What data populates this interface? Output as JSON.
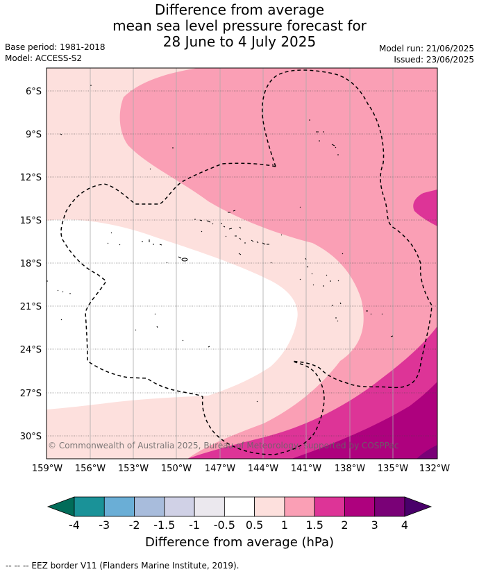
{
  "title": {
    "line1": "Difference from average",
    "line2": "mean sea level pressure forecast for",
    "line3": "28 June to 4 July 2025"
  },
  "meta_left": {
    "base_period": "Base period: 1981-2018",
    "model": "Model: ACCESS-S2"
  },
  "meta_right": {
    "model_run": "Model run: 21/06/2025",
    "issued": "Issued: 23/06/2025"
  },
  "map": {
    "lat_labels": [
      "6°S",
      "9°S",
      "12°S",
      "15°S",
      "18°S",
      "21°S",
      "24°S",
      "27°S",
      "30°S"
    ],
    "lon_labels": [
      "159°W",
      "156°W",
      "153°W",
      "150°W",
      "147°W",
      "144°W",
      "141°W",
      "138°W",
      "135°W",
      "132°W"
    ],
    "copyright": "© Commonwealth of Australia 2025, Bureau of Meteorology, supported by COSPPac"
  },
  "colorbar": {
    "ticks": [
      "-4",
      "-3",
      "-2",
      "-1.5",
      "-1",
      "-0.5",
      "0.5",
      "1",
      "1.5",
      "2",
      "3",
      "4"
    ],
    "colors": [
      "#1a9298",
      "#6aaed6",
      "#a8bcdc",
      "#d0d1e6",
      "#ebe8ee",
      "#ffffff",
      "#fde0dd",
      "#fa9fb5",
      "#dd3497",
      "#ae017e",
      "#7a0177"
    ],
    "under_color": "#016c59",
    "over_color": "#49006a",
    "label": "Difference from average (hPa)"
  },
  "footer": "-- -- -- EEZ border V11 (Flanders Marine Institute, 2019)."
}
